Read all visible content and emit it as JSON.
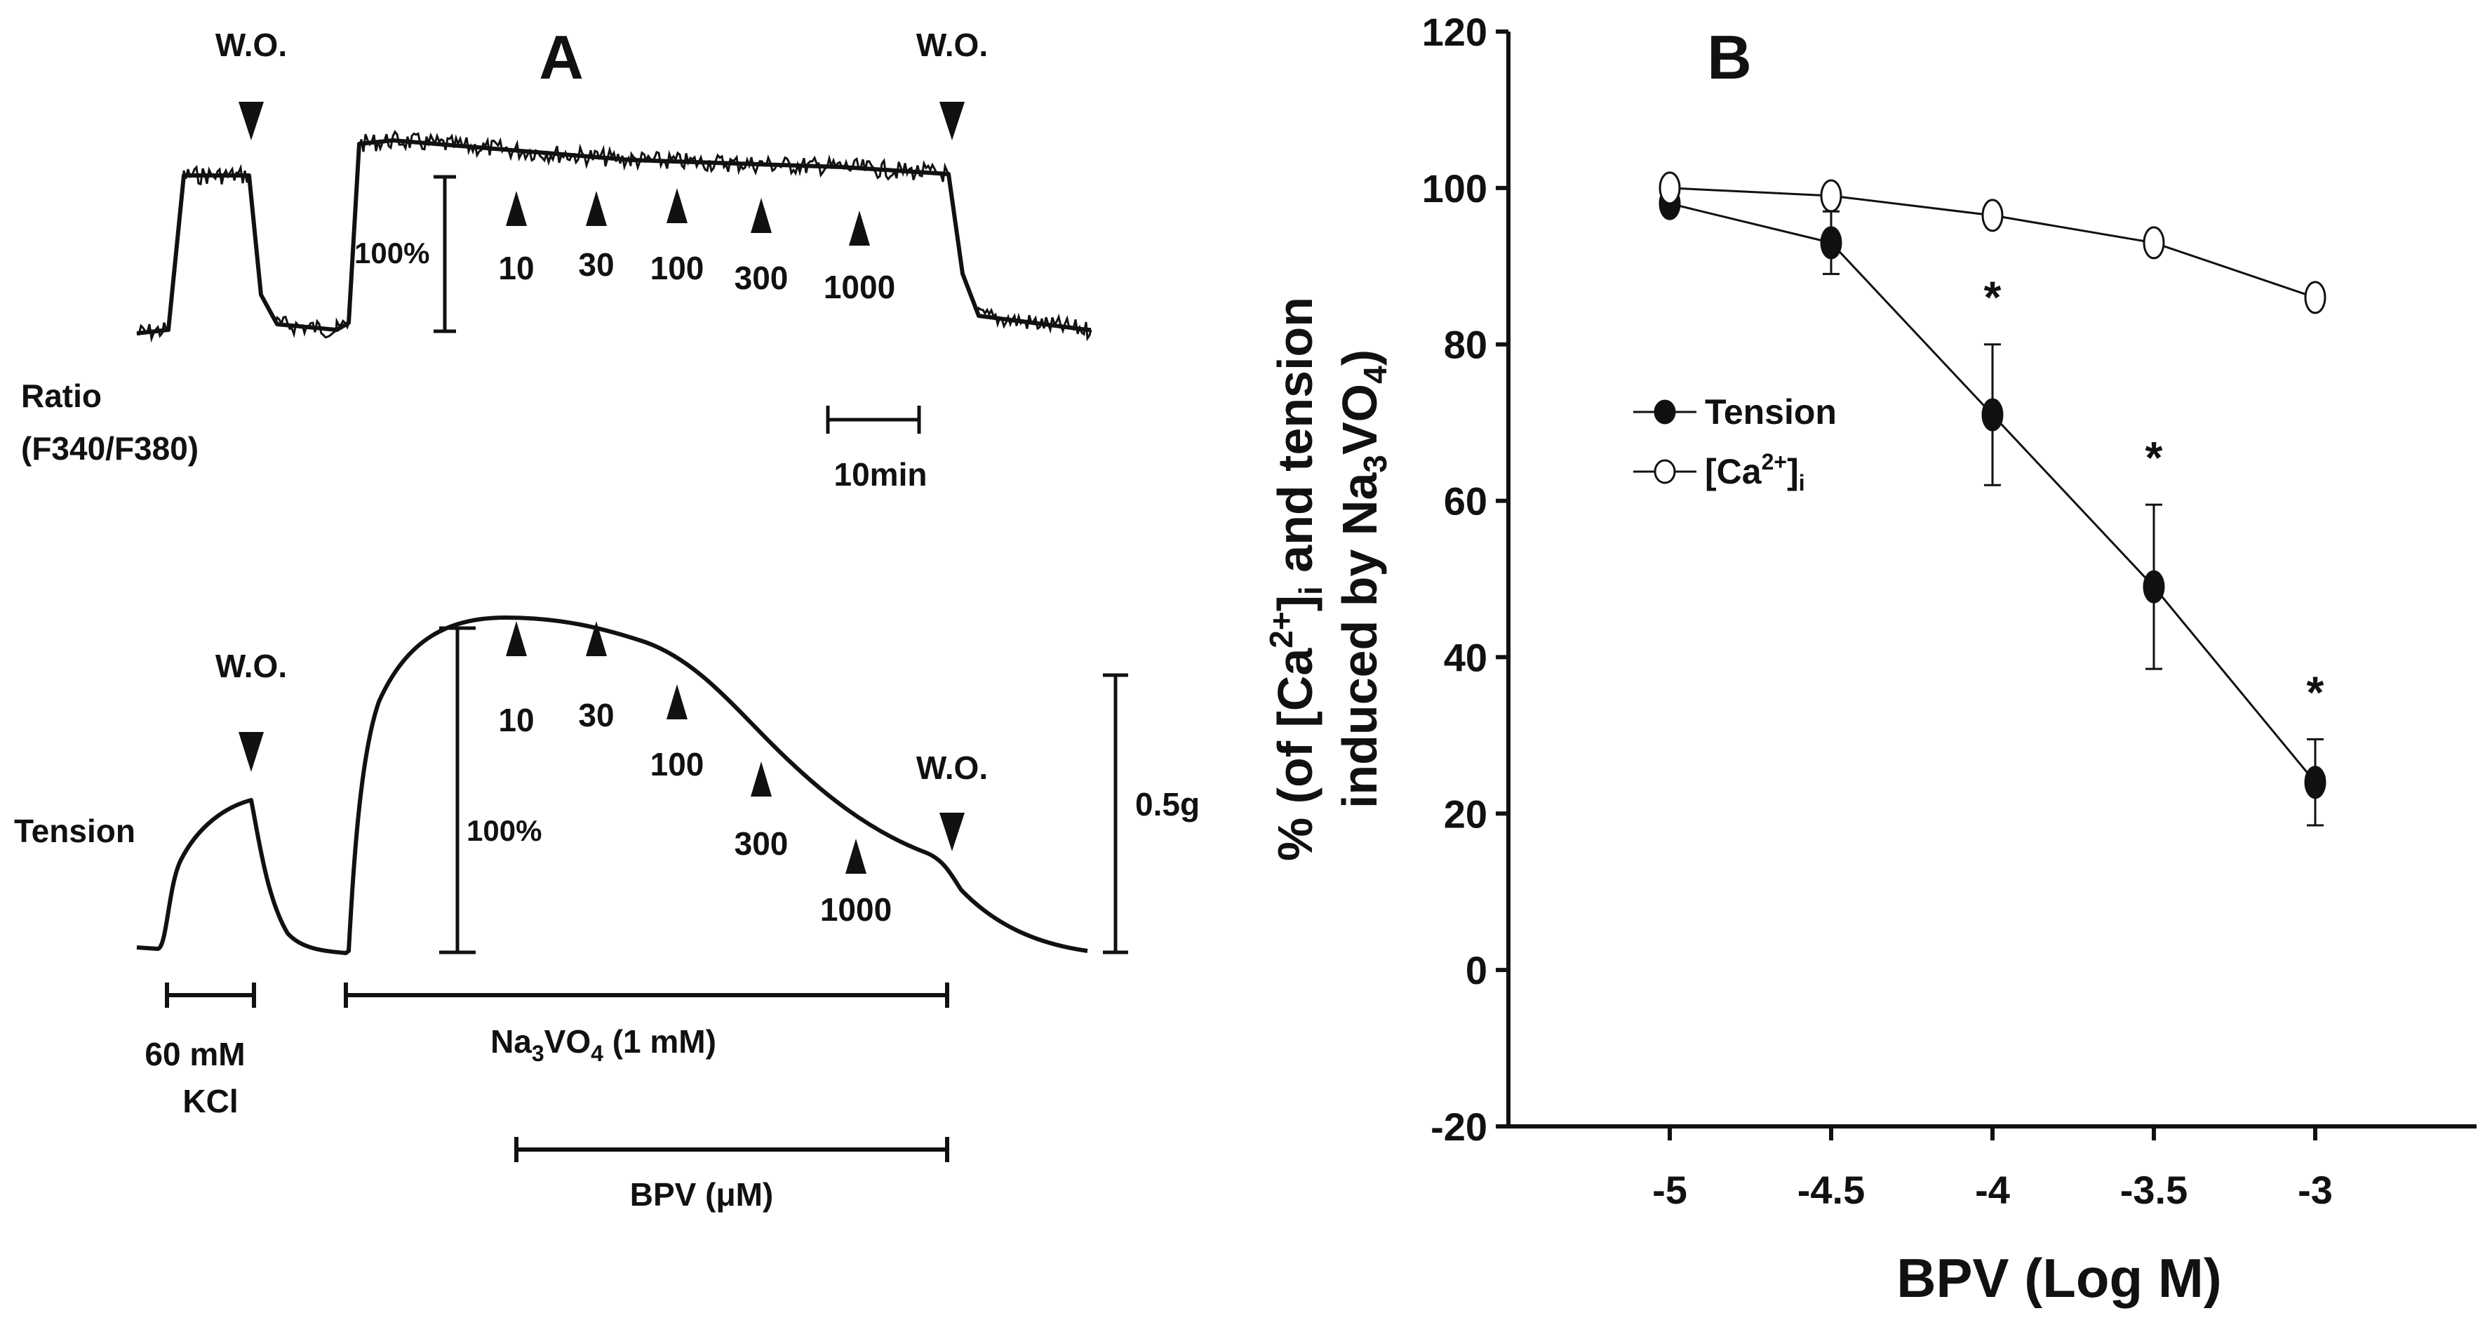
{
  "colors": {
    "ink": "#111111",
    "background": "#ffffff",
    "filled_marker": "#111111",
    "open_marker": "#ffffff"
  },
  "panel_a": {
    "label": "A",
    "top_trace": {
      "ylabel_line1": "Ratio",
      "ylabel_line2": "(F340/F380)",
      "wo_label_1": "W.O.",
      "wo_label_2": "W.O.",
      "scale_100_label": "100%",
      "time_scale_label": "10min",
      "bpv_doses": [
        "10",
        "30",
        "100",
        "300",
        "1000"
      ]
    },
    "bottom_trace": {
      "ylabel": "Tension",
      "wo_label_1": "W.O.",
      "wo_label_2": "W.O.",
      "scale_100_label": "100%",
      "scale_g_label": "0.5g",
      "bpv_doses": [
        "10",
        "30",
        "100",
        "300",
        "1000"
      ]
    },
    "bars": {
      "kcl_line1": "60 mM",
      "kcl_line2": "KCl",
      "vanadate_prefix": "Na",
      "vanadate_sub1": "3",
      "vanadate_mid": "VO",
      "vanadate_sub2": "4",
      "vanadate_suffix": " (1 mM)",
      "bpv_label": "BPV (μM)"
    }
  },
  "chart_data": {
    "type": "line",
    "panel_label": "B",
    "x": [
      -5,
      -4.5,
      -4,
      -3.5,
      -3
    ],
    "x_tick_labels": [
      "-5",
      "-4.5",
      "-4",
      "-3.5",
      "-3"
    ],
    "xlim": [
      -5.5,
      -2.5
    ],
    "ylim": [
      -20,
      120
    ],
    "y_ticks": [
      -20,
      0,
      20,
      40,
      60,
      80,
      100,
      120
    ],
    "y_tick_labels": [
      "-20",
      "0",
      "20",
      "40",
      "60",
      "80",
      "100",
      "120"
    ],
    "xlabel": "BPV (Log M)",
    "ylabel_line1_pre": "% (of [Ca",
    "ylabel_line1_sup": "2+",
    "ylabel_line1_close": "]",
    "ylabel_line1_sub": "i",
    "ylabel_line1_post": " and tension",
    "ylabel_line2_pre": "induced by Na",
    "ylabel_line2_sub1": "3",
    "ylabel_line2_mid": "VO",
    "ylabel_line2_sub2": "4",
    "ylabel_line2_post": ")",
    "legend_position": "upper-left",
    "series": [
      {
        "name": "Tension",
        "marker": "filled",
        "values": [
          98,
          93,
          71,
          49,
          24
        ],
        "errors": [
          0,
          4,
          9,
          10.5,
          5.5
        ]
      },
      {
        "name": "[Ca2+]i",
        "legend_pre": "[Ca",
        "legend_sup": "2+",
        "legend_close": "]",
        "legend_sub": "i",
        "marker": "open",
        "values": [
          100,
          99,
          96.5,
          93,
          86
        ],
        "errors": [
          0,
          0,
          0,
          0,
          0
        ]
      }
    ],
    "significance": {
      "mark": "*",
      "x": [
        -4,
        -3.5,
        -3
      ]
    }
  }
}
